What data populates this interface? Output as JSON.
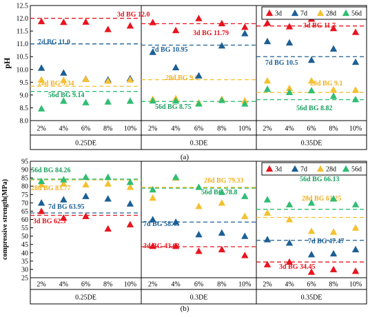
{
  "chart_data": [
    {
      "type": "scatter",
      "panel_label": "(a)",
      "ylabel": "pH",
      "ylim": [
        8.0,
        12.5
      ],
      "yticks": [
        "8.0",
        "8.5",
        "9.0",
        "9.5",
        "10.0",
        "10.5",
        "11.0",
        "11.5",
        "12.0",
        "12.5"
      ],
      "grid": false,
      "legend_position": "top-right",
      "groups": [
        {
          "name": "0.25DE",
          "categories": [
            "2%",
            "4%",
            "6%",
            "8%",
            "10%"
          ],
          "series": [
            {
              "name": "3d",
              "values": [
                11.88,
                11.85,
                11.86,
                11.57,
                11.71
              ]
            },
            {
              "name": "7d",
              "values": [
                10.06,
                9.87,
                9.63,
                9.6,
                9.65
              ]
            },
            {
              "name": "28d",
              "values": [
                9.6,
                9.58,
                9.62,
                9.55,
                9.6
              ]
            },
            {
              "name": "56d",
              "values": [
                8.47,
                8.77,
                8.71,
                8.74,
                8.77
              ]
            }
          ],
          "baselines": [
            {
              "series": "3d",
              "value": 12.0,
              "label": "3d BG 12.0"
            },
            {
              "series": "7d",
              "value": 11.0,
              "label": "7d BG 11.0"
            },
            {
              "series": "28d",
              "value": 9.34,
              "label": "28d BG 9.34"
            },
            {
              "series": "56d",
              "value": 9.14,
              "label": "56d BG 9.14"
            }
          ]
        },
        {
          "name": "0.3DE",
          "categories": [
            "2%",
            "4%",
            "6%",
            "8%",
            "10%"
          ],
          "series": [
            {
              "name": "3d",
              "values": [
                11.84,
                11.53,
                12.0,
                11.8,
                11.66
              ]
            },
            {
              "name": "7d",
              "values": [
                10.68,
                10.08,
                9.76,
                10.93,
                11.41
              ]
            },
            {
              "name": "28d",
              "values": [
                8.84,
                8.87,
                8.7,
                8.84,
                8.78
              ]
            },
            {
              "name": "56d",
              "values": [
                8.78,
                8.78,
                8.66,
                8.8,
                8.66
              ]
            }
          ],
          "baselines": [
            {
              "series": "3d",
              "value": 11.79,
              "label": "3d BG 11.79"
            },
            {
              "series": "7d",
              "value": 10.95,
              "label": "7d BG 10.95"
            },
            {
              "series": "28d",
              "value": 9.6,
              "label": "28d BG 9.6"
            },
            {
              "series": "56d",
              "value": 8.75,
              "label": "56d BG 8.75"
            }
          ]
        },
        {
          "name": "0.35DE",
          "categories": [
            "2%",
            "4%",
            "6%",
            "8%",
            "10%"
          ],
          "series": [
            {
              "name": "3d",
              "values": [
                11.82,
                11.68,
                11.98,
                11.61,
                11.46
              ]
            },
            {
              "name": "7d",
              "values": [
                11.1,
                11.05,
                10.37,
                10.81,
                10.29
              ]
            },
            {
              "name": "28d",
              "values": [
                9.56,
                9.27,
                9.56,
                9.21,
                9.2
              ]
            },
            {
              "name": "56d",
              "values": [
                9.23,
                9.11,
                9.18,
                8.96,
                8.83
              ]
            }
          ],
          "baselines": [
            {
              "series": "3d",
              "value": 11.7,
              "label": "3d BG 11.7"
            },
            {
              "series": "7d",
              "value": 10.5,
              "label": "7d BG 10.5"
            },
            {
              "series": "28d",
              "value": 9.1,
              "label": "28d BG 9.1"
            },
            {
              "series": "56d",
              "value": 8.82,
              "label": "56d BG 8.82"
            }
          ]
        }
      ]
    },
    {
      "type": "scatter",
      "panel_label": "(b)",
      "ylabel": "compressive strength(MPa)",
      "ylim": [
        25,
        95
      ],
      "yticks": [
        "25",
        "30",
        "35",
        "40",
        "45",
        "50",
        "55",
        "60",
        "65",
        "70",
        "75",
        "80",
        "85",
        "90",
        "95"
      ],
      "grid": false,
      "legend_position": "top-right",
      "groups": [
        {
          "name": "0.25DE",
          "categories": [
            "2%",
            "4%",
            "6%",
            "8%",
            "10%"
          ],
          "series": [
            {
              "name": "3d",
              "values": [
                65,
                61,
                62,
                54.5,
                57
              ]
            },
            {
              "name": "7d",
              "values": [
                70,
                72,
                74,
                72.5,
                69.5
              ]
            },
            {
              "name": "28d",
              "values": [
                81,
                81.5,
                81,
                81.5,
                79.5
              ]
            },
            {
              "name": "56d",
              "values": [
                83,
                84,
                85.5,
                85.5,
                82.5
              ]
            }
          ],
          "baselines": [
            {
              "series": "3d",
              "value": 62.5,
              "label": "3d BG 62.5"
            },
            {
              "series": "7d",
              "value": 63.95,
              "label": "7d BG 63.95"
            },
            {
              "series": "28d",
              "value": 83.77,
              "label": "28d BG 83.77"
            },
            {
              "series": "56d",
              "value": 84.26,
              "label": "56d BG 84.26"
            }
          ]
        },
        {
          "name": "0.3DE",
          "categories": [
            "2%",
            "4%",
            "6%",
            "8%",
            "10%"
          ],
          "series": [
            {
              "name": "3d",
              "values": [
                44,
                44,
                41,
                42,
                38.5
              ]
            },
            {
              "name": "7d",
              "values": [
                60,
                58.5,
                51,
                52,
                50
              ]
            },
            {
              "name": "28d",
              "values": [
                73,
                85,
                68,
                70,
                62
              ]
            },
            {
              "name": "56d",
              "values": [
                78,
                85.5,
                79.5,
                76.5,
                74
              ]
            }
          ],
          "baselines": [
            {
              "series": "3d",
              "value": 43.63,
              "label": "3d BG 43.63"
            },
            {
              "series": "7d",
              "value": 58.45,
              "label": "7d BG 58.45"
            },
            {
              "series": "28d",
              "value": 79.33,
              "label": "28d BG 79.33"
            },
            {
              "series": "56d",
              "value": 78.8,
              "label": "56d BG 78.8"
            }
          ]
        },
        {
          "name": "0.35DE",
          "categories": [
            "2%",
            "4%",
            "6%",
            "8%",
            "10%"
          ],
          "series": [
            {
              "name": "3d",
              "values": [
                33,
                34.5,
                28.5,
                30,
                29
              ]
            },
            {
              "name": "7d",
              "values": [
                48,
                46,
                39,
                39.5,
                42
              ]
            },
            {
              "name": "28d",
              "values": [
                64,
                60,
                53,
                52.5,
                55
              ]
            },
            {
              "name": "56d",
              "values": [
                72,
                69,
                70,
                72.5,
                69
              ]
            }
          ],
          "baselines": [
            {
              "series": "3d",
              "value": 34.45,
              "label": "3d BG 34.45"
            },
            {
              "series": "7d",
              "value": 47.47,
              "label": "7d BG 47.47"
            },
            {
              "series": "28d",
              "value": 61.25,
              "label": "28d BG 61.25"
            },
            {
              "series": "56d",
              "value": 66.13,
              "label": "56d BG 66.13"
            }
          ]
        }
      ]
    }
  ],
  "legend": [
    {
      "name": "3d",
      "color": "#e8141e"
    },
    {
      "name": "7d",
      "color": "#1c5f95"
    },
    {
      "name": "28d",
      "color": "#f5c030"
    },
    {
      "name": "56d",
      "color": "#2fbd72"
    }
  ],
  "colors": {
    "3d": "#e8141e",
    "7d": "#1c5f95",
    "28d": "#f5c030",
    "56d": "#2fbd72",
    "label_3d": "#e8141e",
    "label_7d": "#1c5f95",
    "label_28d": "#f0b020",
    "label_56d": "#1aa060",
    "axis": "#000000"
  }
}
